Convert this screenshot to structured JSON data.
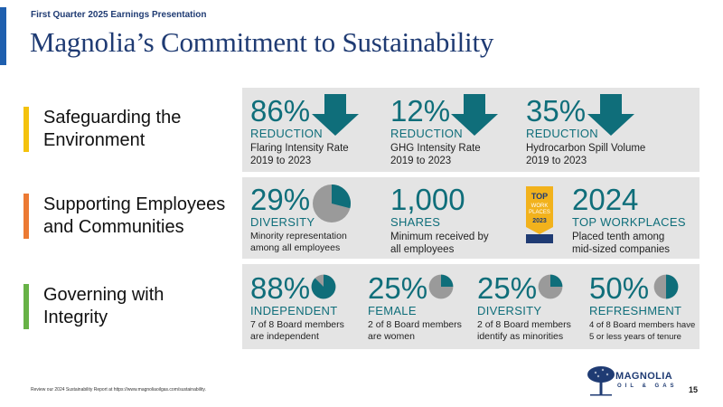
{
  "header": {
    "kicker": "First Quarter 2025 Earnings Presentation",
    "title": "Magnolia’s Commitment to Sustainability"
  },
  "colors": {
    "teal": "#0f6e7a",
    "navy": "#1f3b73",
    "band": "#e4e4e4",
    "yellow": "#f4c20d",
    "orange": "#ec7a33",
    "green": "#67b246"
  },
  "sections": {
    "environment": {
      "label_line1": "Safeguarding the",
      "label_line2": "Environment",
      "stats": [
        {
          "value": "86%",
          "label": "REDUCTION",
          "desc1": "Flaring Intensity Rate",
          "desc2": "2019 to 2023"
        },
        {
          "value": "12%",
          "label": "REDUCTION",
          "desc1": "GHG Intensity Rate",
          "desc2": "2019 to 2023"
        },
        {
          "value": "35%",
          "label": "REDUCTION",
          "desc1": "Hydrocarbon Spill Volume",
          "desc2": "2019 to 2023"
        }
      ]
    },
    "employees": {
      "label_line1": "Supporting Employees",
      "label_line2": "and Communities",
      "stats": [
        {
          "value": "29%",
          "label": "DIVERSITY",
          "desc1": "Minority representation",
          "desc2": "among all employees",
          "pie_fraction": 0.29
        },
        {
          "value": "1,000",
          "label": "SHARES",
          "desc1": "Minimum received by",
          "desc2": "all employees"
        },
        {
          "value": "2024",
          "label": "TOP WORKPLACES",
          "desc1": "Placed tenth among",
          "desc2": "mid-sized companies"
        }
      ],
      "badge": {
        "line1": "TOP",
        "line2": "WORK",
        "line3": "PLACES",
        "year": "2023"
      }
    },
    "governance": {
      "label_line1": "Governing with",
      "label_line2": "Integrity",
      "stats": [
        {
          "value": "88%",
          "label": "INDEPENDENT",
          "desc1": "7 of 8 Board members",
          "desc2": "are independent",
          "pie_fraction": 0.875
        },
        {
          "value": "25%",
          "label": "FEMALE",
          "desc1": "2 of 8 Board members",
          "desc2": "are women",
          "pie_fraction": 0.25
        },
        {
          "value": "25%",
          "label": "DIVERSITY",
          "desc1": "2 of 8 Board members",
          "desc2": "identify as minorities",
          "pie_fraction": 0.25
        },
        {
          "value": "50%",
          "label": "REFRESHMENT",
          "desc1": "4 of 8 Board members have",
          "desc2": "5 or less years of tenure",
          "pie_fraction": 0.5
        }
      ]
    }
  },
  "footer": {
    "note": "Review our 2024 Sustainability Report at https://www.magnoliaoilgas.com/sustainability.",
    "page": "15",
    "logo_name": "MAGNOLIA",
    "logo_sub": "OIL & GAS",
    "logo_icon": "magnolia-tree-icon"
  }
}
